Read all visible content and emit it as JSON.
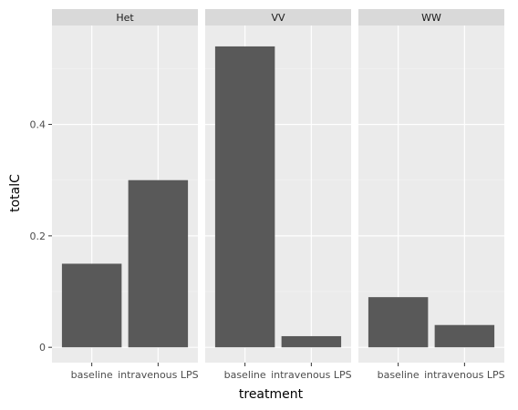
{
  "chart_data": {
    "type": "bar",
    "facet_variable": "genotype",
    "xlabel": "treatment",
    "ylabel": "totalC",
    "ylim": [
      -0.0275,
      0.5775
    ],
    "yticks": [
      0,
      0.2,
      0.4
    ],
    "ytick_labels": [
      "0",
      "0.2",
      "0.4"
    ],
    "categories": [
      "baseline",
      "intravenous LPS"
    ],
    "grid": true,
    "panels": [
      {
        "name": "Het",
        "values": [
          0.15,
          0.3
        ]
      },
      {
        "name": "VV",
        "values": [
          0.54,
          0.02
        ]
      },
      {
        "name": "WW",
        "values": [
          0.09,
          0.04
        ]
      }
    ],
    "colors": {
      "bar": "#595959",
      "panel_background": "#ebebeb",
      "grid_major": "#ffffff",
      "grid_minor": "#f4f4f4",
      "strip_background": "#d9d9d9",
      "tick": "#333333"
    }
  }
}
